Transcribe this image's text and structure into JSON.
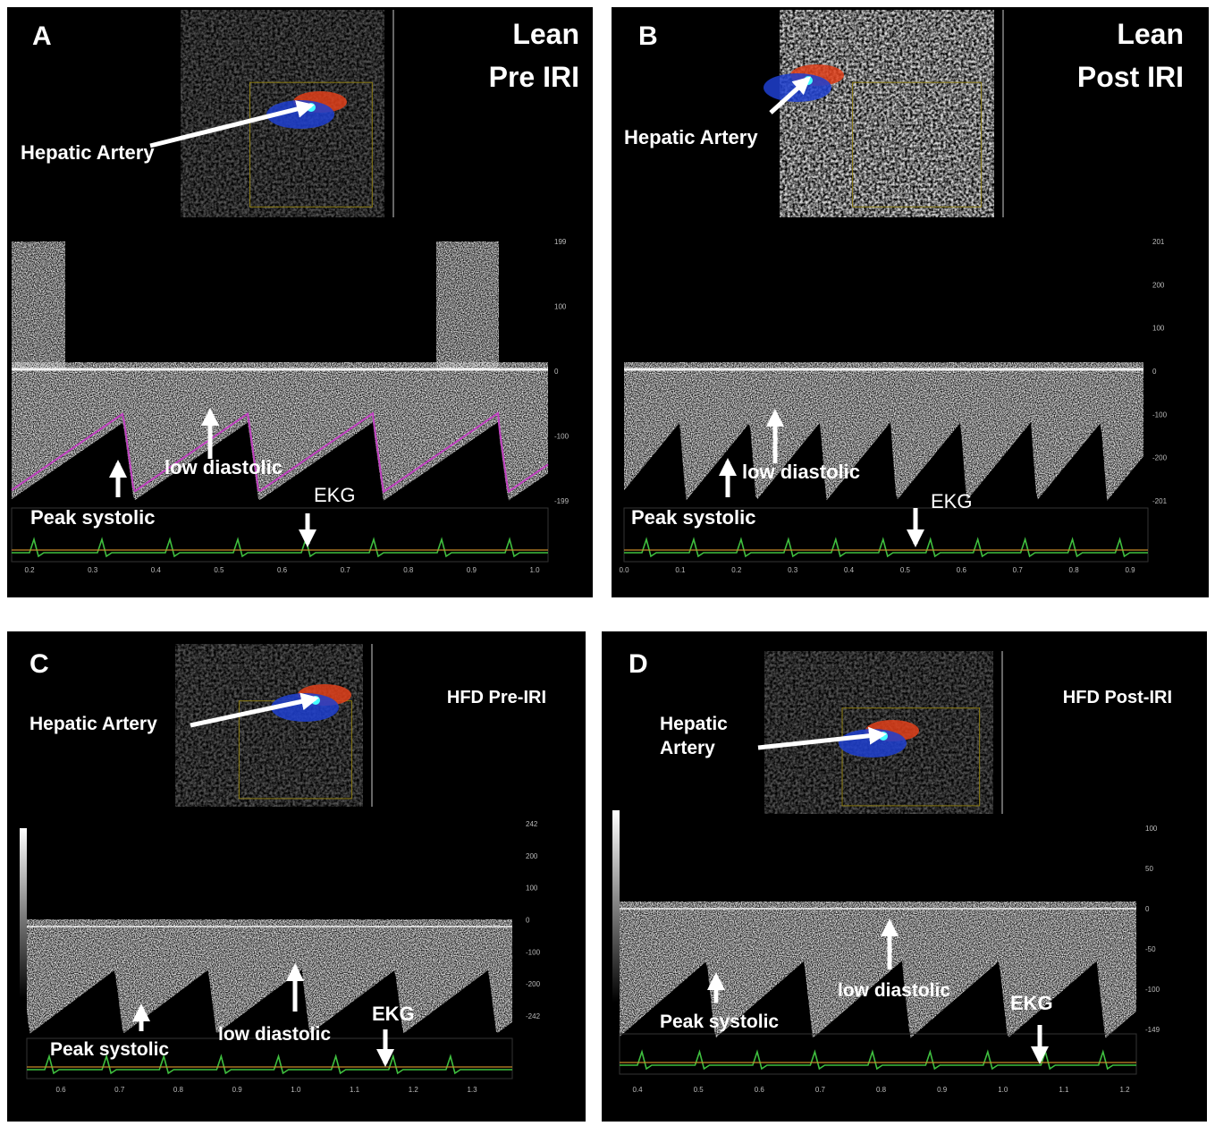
{
  "panels": [
    {
      "letter": "A",
      "title": [
        "Lean",
        "Pre IRI"
      ],
      "vessel_label": [
        "Hepatic Artery"
      ],
      "annotations": {
        "diastolic": "low diastolic",
        "systolic": "Peak systolic",
        "ekg": "EKG"
      },
      "y_axis_labels": [
        "199",
        "100",
        "0",
        "-100",
        "-199"
      ],
      "x_axis_labels": [
        "0.2",
        "0.3",
        "0.4",
        "0.5",
        "0.6",
        "0.7",
        "0.8",
        "0.9",
        "1.0"
      ]
    },
    {
      "letter": "B",
      "title": [
        "Lean",
        "Post IRI"
      ],
      "vessel_label": [
        "Hepatic Artery"
      ],
      "annotations": {
        "diastolic": "low diastolic",
        "systolic": "Peak systolic",
        "ekg": "EKG"
      },
      "y_axis_labels": [
        "201",
        "200",
        "100",
        "0",
        "-100",
        "-200",
        "-201"
      ],
      "x_axis_labels": [
        "0.0",
        "0.1",
        "0.2",
        "0.3",
        "0.4",
        "0.5",
        "0.6",
        "0.7",
        "0.8",
        "0.9"
      ]
    },
    {
      "letter": "C",
      "title": [
        "HFD Pre-IRI"
      ],
      "vessel_label": [
        "Hepatic Artery"
      ],
      "annotations": {
        "diastolic": "low diastolic",
        "systolic": "Peak systolic",
        "ekg": "EKG"
      },
      "y_axis_labels": [
        "242",
        "200",
        "100",
        "0",
        "-100",
        "-200",
        "-242"
      ],
      "x_axis_labels": [
        "0.6",
        "0.7",
        "0.8",
        "0.9",
        "1.0",
        "1.1",
        "1.2",
        "1.3"
      ]
    },
    {
      "letter": "D",
      "title": [
        "HFD Post-IRI"
      ],
      "vessel_label": [
        "Hepatic",
        "Artery"
      ],
      "annotations": {
        "diastolic": "low diastolic",
        "systolic": "Peak systolic",
        "ekg": "EKG"
      },
      "y_axis_labels": [
        "100",
        "50",
        "0",
        "-50",
        "-100",
        "-149"
      ],
      "x_axis_labels": [
        "0.4",
        "0.5",
        "0.6",
        "0.7",
        "0.8",
        "0.9",
        "1.0",
        "1.1",
        "1.2"
      ]
    }
  ]
}
